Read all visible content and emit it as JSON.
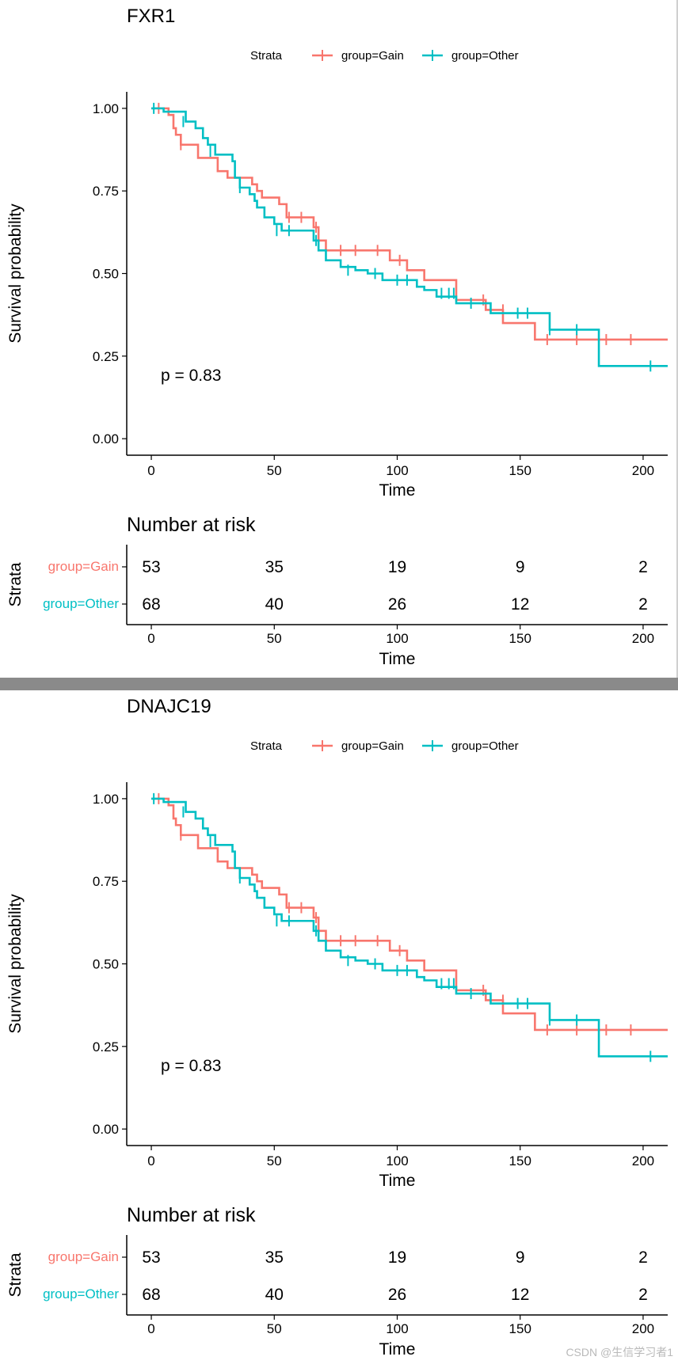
{
  "colors": {
    "gain": "#F8766D",
    "other": "#00BFC4",
    "axis": "#000000",
    "divider": "#8a8a8a"
  },
  "watermark": "CSDN @生信学习者1",
  "chart_data": [
    {
      "type": "line",
      "subtype": "kaplan-meier",
      "title": "FXR1",
      "legend_title": "Strata",
      "legend_position": "top",
      "xlabel": "Time",
      "ylabel": "Survival probability",
      "xlim": [
        -10,
        210
      ],
      "ylim": [
        -0.05,
        1.05
      ],
      "x_ticks": [
        0,
        50,
        100,
        150,
        200
      ],
      "y_ticks": [
        0.0,
        0.25,
        0.5,
        0.75,
        1.0
      ],
      "y_tick_labels": [
        "0.00",
        "0.25",
        "0.50",
        "0.75",
        "1.00"
      ],
      "annotation": "p = 0.83",
      "series": [
        {
          "name": "group=Gain",
          "color": "#F8766D",
          "steps": [
            [
              0,
              1.0
            ],
            [
              7,
              0.98
            ],
            [
              9,
              0.94
            ],
            [
              10,
              0.92
            ],
            [
              12,
              0.89
            ],
            [
              19,
              0.85
            ],
            [
              27,
              0.81
            ],
            [
              31,
              0.79
            ],
            [
              41,
              0.77
            ],
            [
              43,
              0.75
            ],
            [
              45,
              0.73
            ],
            [
              52,
              0.71
            ],
            [
              55,
              0.67
            ],
            [
              66,
              0.64
            ],
            [
              68,
              0.6
            ],
            [
              71,
              0.57
            ],
            [
              97,
              0.54
            ],
            [
              104,
              0.51
            ],
            [
              111,
              0.48
            ],
            [
              124,
              0.42
            ],
            [
              136,
              0.39
            ],
            [
              143,
              0.35
            ],
            [
              156,
              0.3
            ]
          ],
          "end": 210,
          "censors": [
            [
              3,
              1.0
            ],
            [
              12,
              0.89
            ],
            [
              56,
              0.67
            ],
            [
              61,
              0.67
            ],
            [
              67,
              0.64
            ],
            [
              77,
              0.57
            ],
            [
              83,
              0.57
            ],
            [
              92,
              0.57
            ],
            [
              101,
              0.54
            ],
            [
              135,
              0.42
            ],
            [
              143,
              0.39
            ],
            [
              161,
              0.3
            ],
            [
              173,
              0.3
            ],
            [
              185,
              0.3
            ],
            [
              195,
              0.3
            ]
          ]
        },
        {
          "name": "group=Other",
          "color": "#00BFC4",
          "steps": [
            [
              0,
              1.0
            ],
            [
              5,
              0.99
            ],
            [
              14,
              0.96
            ],
            [
              18,
              0.94
            ],
            [
              21,
              0.91
            ],
            [
              23,
              0.89
            ],
            [
              26,
              0.86
            ],
            [
              33,
              0.84
            ],
            [
              34,
              0.79
            ],
            [
              36,
              0.76
            ],
            [
              40,
              0.74
            ],
            [
              42,
              0.72
            ],
            [
              43,
              0.7
            ],
            [
              46,
              0.67
            ],
            [
              50,
              0.65
            ],
            [
              53,
              0.63
            ],
            [
              66,
              0.6
            ],
            [
              68,
              0.57
            ],
            [
              71,
              0.54
            ],
            [
              77,
              0.52
            ],
            [
              83,
              0.51
            ],
            [
              88,
              0.5
            ],
            [
              94,
              0.48
            ],
            [
              108,
              0.46
            ],
            [
              111,
              0.45
            ],
            [
              116,
              0.43
            ],
            [
              124,
              0.41
            ],
            [
              138,
              0.38
            ],
            [
              162,
              0.33
            ],
            [
              182,
              0.22
            ]
          ],
          "end": 210,
          "censors": [
            [
              1,
              1.0
            ],
            [
              13,
              0.96
            ],
            [
              24,
              0.87
            ],
            [
              36,
              0.76
            ],
            [
              51,
              0.63
            ],
            [
              56,
              0.63
            ],
            [
              67,
              0.6
            ],
            [
              80,
              0.51
            ],
            [
              91,
              0.5
            ],
            [
              100,
              0.48
            ],
            [
              104,
              0.48
            ],
            [
              118,
              0.44
            ],
            [
              121,
              0.44
            ],
            [
              123,
              0.44
            ],
            [
              130,
              0.41
            ],
            [
              149,
              0.38
            ],
            [
              153,
              0.38
            ],
            [
              162,
              0.33
            ],
            [
              173,
              0.33
            ],
            [
              203,
              0.22
            ]
          ]
        }
      ],
      "risk_table": {
        "title": "Number at risk",
        "ylabel": "Strata",
        "xlabel": "Time",
        "times": [
          0,
          50,
          100,
          150,
          200
        ],
        "rows": [
          {
            "label": "group=Gain",
            "color": "#F8766D",
            "values": [
              "53",
              "35",
              "19",
              "9",
              "2"
            ]
          },
          {
            "label": "group=Other",
            "color": "#00BFC4",
            "values": [
              "68",
              "40",
              "26",
              "12",
              "2"
            ]
          }
        ]
      }
    },
    {
      "type": "line",
      "subtype": "kaplan-meier",
      "title": "DNAJC19",
      "legend_title": "Strata",
      "legend_position": "top",
      "xlabel": "Time",
      "ylabel": "Survival probability",
      "xlim": [
        -10,
        210
      ],
      "ylim": [
        -0.05,
        1.05
      ],
      "x_ticks": [
        0,
        50,
        100,
        150,
        200
      ],
      "y_ticks": [
        0.0,
        0.25,
        0.5,
        0.75,
        1.0
      ],
      "y_tick_labels": [
        "0.00",
        "0.25",
        "0.50",
        "0.75",
        "1.00"
      ],
      "annotation": "p = 0.83",
      "series": [
        {
          "name": "group=Gain",
          "color": "#F8766D",
          "steps": [
            [
              0,
              1.0
            ],
            [
              7,
              0.98
            ],
            [
              9,
              0.94
            ],
            [
              10,
              0.92
            ],
            [
              12,
              0.89
            ],
            [
              19,
              0.85
            ],
            [
              27,
              0.81
            ],
            [
              31,
              0.79
            ],
            [
              41,
              0.77
            ],
            [
              43,
              0.75
            ],
            [
              45,
              0.73
            ],
            [
              52,
              0.71
            ],
            [
              55,
              0.67
            ],
            [
              66,
              0.64
            ],
            [
              68,
              0.6
            ],
            [
              71,
              0.57
            ],
            [
              97,
              0.54
            ],
            [
              104,
              0.51
            ],
            [
              111,
              0.48
            ],
            [
              124,
              0.42
            ],
            [
              136,
              0.39
            ],
            [
              143,
              0.35
            ],
            [
              156,
              0.3
            ]
          ],
          "end": 210,
          "censors": [
            [
              3,
              1.0
            ],
            [
              12,
              0.89
            ],
            [
              56,
              0.67
            ],
            [
              61,
              0.67
            ],
            [
              67,
              0.64
            ],
            [
              77,
              0.57
            ],
            [
              83,
              0.57
            ],
            [
              92,
              0.57
            ],
            [
              101,
              0.54
            ],
            [
              135,
              0.42
            ],
            [
              143,
              0.39
            ],
            [
              161,
              0.3
            ],
            [
              173,
              0.3
            ],
            [
              185,
              0.3
            ],
            [
              195,
              0.3
            ]
          ]
        },
        {
          "name": "group=Other",
          "color": "#00BFC4",
          "steps": [
            [
              0,
              1.0
            ],
            [
              5,
              0.99
            ],
            [
              14,
              0.96
            ],
            [
              18,
              0.94
            ],
            [
              21,
              0.91
            ],
            [
              23,
              0.89
            ],
            [
              26,
              0.86
            ],
            [
              33,
              0.84
            ],
            [
              34,
              0.79
            ],
            [
              36,
              0.76
            ],
            [
              40,
              0.74
            ],
            [
              42,
              0.72
            ],
            [
              43,
              0.7
            ],
            [
              46,
              0.67
            ],
            [
              50,
              0.65
            ],
            [
              53,
              0.63
            ],
            [
              66,
              0.6
            ],
            [
              68,
              0.57
            ],
            [
              71,
              0.54
            ],
            [
              77,
              0.52
            ],
            [
              83,
              0.51
            ],
            [
              88,
              0.5
            ],
            [
              94,
              0.48
            ],
            [
              108,
              0.46
            ],
            [
              111,
              0.45
            ],
            [
              116,
              0.43
            ],
            [
              124,
              0.41
            ],
            [
              138,
              0.38
            ],
            [
              162,
              0.33
            ],
            [
              182,
              0.22
            ]
          ],
          "end": 210,
          "censors": [
            [
              1,
              1.0
            ],
            [
              13,
              0.96
            ],
            [
              24,
              0.87
            ],
            [
              36,
              0.76
            ],
            [
              51,
              0.63
            ],
            [
              56,
              0.63
            ],
            [
              67,
              0.6
            ],
            [
              80,
              0.51
            ],
            [
              91,
              0.5
            ],
            [
              100,
              0.48
            ],
            [
              104,
              0.48
            ],
            [
              118,
              0.44
            ],
            [
              121,
              0.44
            ],
            [
              123,
              0.44
            ],
            [
              130,
              0.41
            ],
            [
              149,
              0.38
            ],
            [
              153,
              0.38
            ],
            [
              162,
              0.33
            ],
            [
              173,
              0.33
            ],
            [
              203,
              0.22
            ]
          ]
        }
      ],
      "risk_table": {
        "title": "Number at risk",
        "ylabel": "Strata",
        "xlabel": "Time",
        "times": [
          0,
          50,
          100,
          150,
          200
        ],
        "rows": [
          {
            "label": "group=Gain",
            "color": "#F8766D",
            "values": [
              "53",
              "35",
              "19",
              "9",
              "2"
            ]
          },
          {
            "label": "group=Other",
            "color": "#00BFC4",
            "values": [
              "68",
              "40",
              "26",
              "12",
              "2"
            ]
          }
        ]
      }
    }
  ]
}
